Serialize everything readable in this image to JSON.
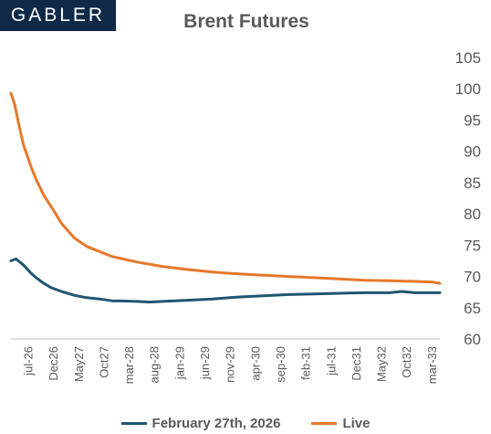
{
  "logo": {
    "text": "GABLER"
  },
  "chart_data": {
    "type": "line",
    "title": "Brent Futures",
    "xlabel": "",
    "ylabel": "",
    "ylim": [
      60,
      105
    ],
    "yticks": [
      60,
      65,
      70,
      75,
      80,
      85,
      90,
      95,
      100,
      105
    ],
    "y_axis_side": "right",
    "grid": false,
    "legend_position": "bottom",
    "x_tick_labels": [
      "jul-26",
      "Dec26",
      "May27",
      "Oct27",
      "mar-28",
      "aug-28",
      "jan-29",
      "jun-29",
      "nov-29",
      "apr-30",
      "sep-30",
      "feb-31",
      "jul-31",
      "Dec31",
      "May32",
      "Oct32",
      "mar-33"
    ],
    "x_index_range": [
      0,
      17
    ],
    "series": [
      {
        "name": "February 27th, 2026",
        "color": "#1f5673",
        "points": [
          [
            0,
            72.5
          ],
          [
            0.2,
            72.8
          ],
          [
            0.5,
            71.8
          ],
          [
            0.8,
            70.5
          ],
          [
            1,
            69.8
          ],
          [
            1.3,
            68.9
          ],
          [
            1.6,
            68.2
          ],
          [
            2,
            67.6
          ],
          [
            2.5,
            67.0
          ],
          [
            3,
            66.6
          ],
          [
            3.5,
            66.4
          ],
          [
            4,
            66.1
          ],
          [
            5,
            66.0
          ],
          [
            5.5,
            65.9
          ],
          [
            6,
            66.0
          ],
          [
            7,
            66.2
          ],
          [
            8,
            66.4
          ],
          [
            9,
            66.7
          ],
          [
            10,
            66.9
          ],
          [
            11,
            67.1
          ],
          [
            12,
            67.2
          ],
          [
            13,
            67.3
          ],
          [
            14,
            67.4
          ],
          [
            15,
            67.4
          ],
          [
            15.5,
            67.6
          ],
          [
            16,
            67.4
          ],
          [
            17,
            67.4
          ]
        ]
      },
      {
        "name": "Live",
        "color": "#e8782a",
        "points": [
          [
            0,
            99.3
          ],
          [
            0.15,
            97.5
          ],
          [
            0.3,
            94.5
          ],
          [
            0.5,
            91.0
          ],
          [
            0.8,
            87.5
          ],
          [
            1,
            85.5
          ],
          [
            1.3,
            83.0
          ],
          [
            1.7,
            80.5
          ],
          [
            2,
            78.5
          ],
          [
            2.5,
            76.2
          ],
          [
            3,
            74.8
          ],
          [
            3.5,
            74.0
          ],
          [
            4,
            73.2
          ],
          [
            5,
            72.3
          ],
          [
            6,
            71.6
          ],
          [
            7,
            71.1
          ],
          [
            8,
            70.7
          ],
          [
            9,
            70.4
          ],
          [
            10,
            70.2
          ],
          [
            11,
            70.0
          ],
          [
            12,
            69.8
          ],
          [
            13,
            69.6
          ],
          [
            14,
            69.4
          ],
          [
            15,
            69.3
          ],
          [
            16,
            69.2
          ],
          [
            16.7,
            69.1
          ],
          [
            17,
            68.9
          ]
        ]
      }
    ]
  }
}
